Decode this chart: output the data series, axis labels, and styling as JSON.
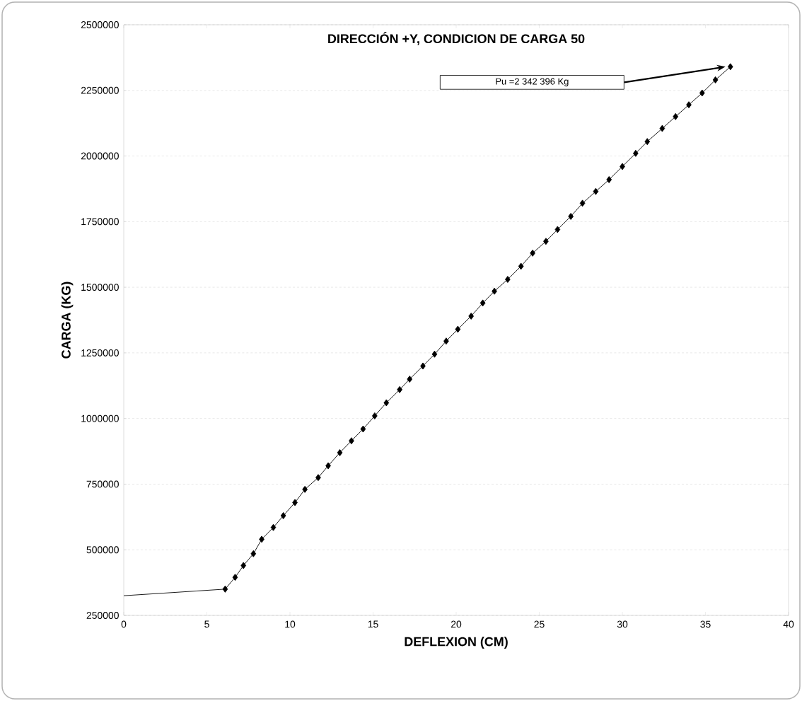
{
  "chart_data": {
    "type": "line",
    "title": "DIRECCIÓN +Y, CONDICION DE CARGA 50",
    "xlabel": "DEFLEXION (CM)",
    "ylabel": "CARGA (KG)",
    "xlim": [
      0,
      40
    ],
    "xticks": [
      0,
      5,
      10,
      15,
      20,
      25,
      30,
      35,
      40
    ],
    "ylim": [
      250000,
      2500000
    ],
    "yticks": [
      250000,
      500000,
      750000,
      1000000,
      1250000,
      1500000,
      1750000,
      2000000,
      2250000,
      2500000
    ],
    "grid": "y",
    "annotations": [
      "Pu =2 342 396 Kg"
    ],
    "series": [
      {
        "color": "#000000",
        "x": [
          0,
          6.1
        ],
        "values": [
          325000,
          350000
        ]
      },
      {
        "color": "#000000",
        "marker": "diamond",
        "x": [
          6.1,
          6.7,
          7.2,
          7.8,
          8.3,
          9.0,
          9.6,
          10.3,
          10.9,
          11.7,
          12.3,
          13.0,
          13.7,
          14.4,
          15.1,
          15.8,
          16.6,
          17.2,
          18.0,
          18.7,
          19.4,
          20.1,
          20.9,
          21.6,
          22.3,
          23.1,
          23.9,
          24.6,
          25.4,
          26.1,
          26.9,
          27.6,
          28.4,
          29.2,
          30.0,
          30.8,
          31.5,
          32.4,
          33.2,
          34.0,
          34.8,
          35.6,
          36.5
        ],
        "values": [
          350000,
          395000,
          440000,
          485000,
          540000,
          585000,
          630000,
          680000,
          730000,
          775000,
          820000,
          870000,
          915000,
          960000,
          1010000,
          1060000,
          1110000,
          1150000,
          1200000,
          1245000,
          1295000,
          1340000,
          1390000,
          1440000,
          1485000,
          1530000,
          1580000,
          1630000,
          1675000,
          1720000,
          1770000,
          1820000,
          1865000,
          1910000,
          1960000,
          2010000,
          2055000,
          2105000,
          2150000,
          2195000,
          2240000,
          2290000,
          2340000
        ]
      }
    ]
  }
}
